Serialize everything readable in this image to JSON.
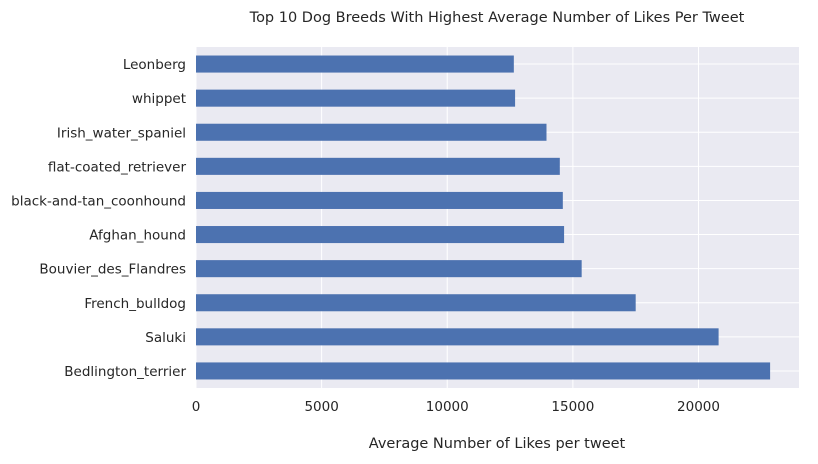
{
  "chart_data": {
    "type": "bar",
    "orientation": "horizontal",
    "title": "Top 10 Dog Breeds With Highest Average Number of Likes Per Tweet",
    "xlabel": "Average Number of Likes per tweet",
    "ylabel": "",
    "categories": [
      "Bedlington_terrier",
      "Saluki",
      "French_bulldog",
      "Bouvier_des_Flandres",
      "Afghan_hound",
      "black-and-tan_coonhound",
      "flat-coated_retriever",
      "Irish_water_spaniel",
      "whippet",
      "Leonberg"
    ],
    "values": [
      22850,
      20800,
      17500,
      15350,
      14650,
      14600,
      14480,
      13950,
      12700,
      12650
    ],
    "xlim": [
      0,
      24000
    ],
    "xticks": [
      0,
      5000,
      10000,
      15000,
      20000
    ],
    "grid": true,
    "colors": {
      "bar": "#4c72b0",
      "plot_background": "#eaeaf2",
      "grid": "#ffffff",
      "text": "#262626"
    }
  }
}
